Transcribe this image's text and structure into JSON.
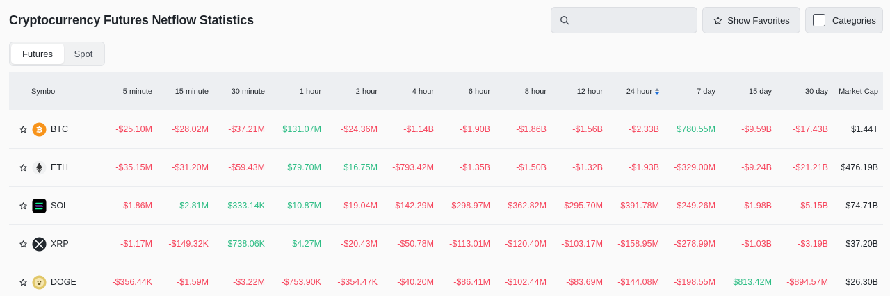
{
  "page": {
    "title": "Cryptocurrency Futures Netflow Statistics"
  },
  "search": {
    "placeholder": ""
  },
  "buttons": {
    "favorites_label": "Show Favorites",
    "categories_label": "Categories"
  },
  "tabs": [
    {
      "label": "Futures",
      "active": true
    },
    {
      "label": "Spot",
      "active": false
    }
  ],
  "table": {
    "headers": [
      "Symbol",
      "5 minute",
      "15 minute",
      "30 minute",
      "1 hour",
      "2 hour",
      "4 hour",
      "6 hour",
      "8 hour",
      "12 hour",
      "24 hour",
      "7 day",
      "15 day",
      "30 day",
      "Market Cap"
    ],
    "sorted_column": "24 hour",
    "rows": [
      {
        "symbol": "BTC",
        "icon": "bitcoin-icon",
        "color": "#f7931a",
        "values": [
          "-$25.10M",
          "-$28.02M",
          "-$37.21M",
          "$131.07M",
          "-$24.36M",
          "-$1.14B",
          "-$1.90B",
          "-$1.86B",
          "-$1.56B",
          "-$2.33B",
          "$780.55M",
          "-$9.59B",
          "-$17.43B"
        ],
        "market_cap": "$1.44T"
      },
      {
        "symbol": "ETH",
        "icon": "ethereum-icon",
        "color": "#ffffff",
        "values": [
          "-$35.15M",
          "-$31.20M",
          "-$59.43M",
          "$79.70M",
          "$16.75M",
          "-$793.42M",
          "-$1.35B",
          "-$1.50B",
          "-$1.32B",
          "-$1.93B",
          "-$329.00M",
          "-$9.24B",
          "-$21.21B"
        ],
        "market_cap": "$476.19B"
      },
      {
        "symbol": "SOL",
        "icon": "solana-icon",
        "color": "#000000",
        "values": [
          "-$1.86M",
          "$2.81M",
          "$333.14K",
          "$10.87M",
          "-$19.04M",
          "-$142.29M",
          "-$298.97M",
          "-$362.82M",
          "-$295.70M",
          "-$391.78M",
          "-$249.26M",
          "-$1.98B",
          "-$5.15B"
        ],
        "market_cap": "$74.71B"
      },
      {
        "symbol": "XRP",
        "icon": "xrp-icon",
        "color": "#23292f",
        "values": [
          "-$1.17M",
          "-$149.32K",
          "$738.06K",
          "$4.27M",
          "-$20.43M",
          "-$50.78M",
          "-$113.01M",
          "-$120.40M",
          "-$103.17M",
          "-$158.95M",
          "-$278.99M",
          "-$1.03B",
          "-$3.19B"
        ],
        "market_cap": "$37.20B"
      },
      {
        "symbol": "DOGE",
        "icon": "dogecoin-icon",
        "color": "#c2a633",
        "values": [
          "-$356.44K",
          "-$1.59M",
          "-$3.22M",
          "-$753.90K",
          "-$354.47K",
          "-$40.20M",
          "-$86.41M",
          "-$102.44M",
          "-$83.69M",
          "-$144.08M",
          "-$198.55M",
          "$813.42M",
          "-$894.57M"
        ],
        "market_cap": "$26.30B"
      }
    ]
  },
  "colors": {
    "negative": "#f6465d",
    "positive": "#2ebd85",
    "sort_active": "#1e6fd9"
  }
}
